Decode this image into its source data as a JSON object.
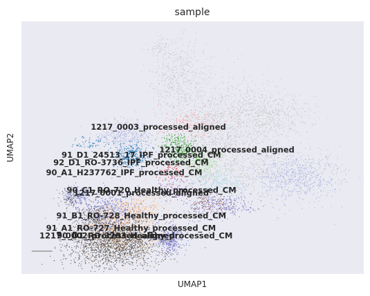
{
  "chart_data": {
    "type": "scatter",
    "title": "sample",
    "xlabel": "UMAP1",
    "ylabel": "UMAP2",
    "x_ticks": [],
    "y_ticks": [],
    "grid": false,
    "background_color": "#eaeaf2",
    "cluster_labels": [
      {
        "text": "1217_0003_processed_aligned",
        "x": 0.4,
        "y": 0.58
      },
      {
        "text": "91_D1_24513_17_IPF_processed_CM",
        "x": 0.35,
        "y": 0.47
      },
      {
        "text": "1217_0004_processed_aligned",
        "x": 0.6,
        "y": 0.49
      },
      {
        "text": "92_D1_RO-3736_IPF_processed_CM",
        "x": 0.32,
        "y": 0.44
      },
      {
        "text": "90_A1_H237762_IPF_processed_CM",
        "x": 0.3,
        "y": 0.4
      },
      {
        "text": "90_C1_RO-720_Healthy_processed_CM",
        "x": 0.38,
        "y": 0.33
      },
      {
        "text": "1217_0001_processed_aligned",
        "x": 0.35,
        "y": 0.32
      },
      {
        "text": "91_B1_RO-728_Healthy_processed_CM",
        "x": 0.35,
        "y": 0.23
      },
      {
        "text": "91_A1_RO-727_Healthy_processed_CM",
        "x": 0.32,
        "y": 0.18
      },
      {
        "text": "1217_0002_processed_aligned",
        "x": 0.25,
        "y": 0.15
      },
      {
        "text": "90_D1_RO-3203_Healthy_processed_CM",
        "x": 0.36,
        "y": 0.15
      }
    ],
    "point_groups": [
      {
        "color": "#c7c7c7",
        "regions": [
          [
            0.58,
            0.58,
            0.16,
            0.2,
            1400
          ],
          [
            0.46,
            0.78,
            0.08,
            0.14,
            500
          ],
          [
            0.72,
            0.63,
            0.12,
            0.1,
            500
          ],
          [
            0.62,
            0.4,
            0.2,
            0.09,
            500
          ],
          [
            0.4,
            0.9,
            0.03,
            0.04,
            60
          ]
        ]
      },
      {
        "color": "#aeb7df",
        "regions": [
          [
            0.8,
            0.39,
            0.13,
            0.1,
            800
          ],
          [
            0.3,
            0.55,
            0.08,
            0.06,
            400
          ]
        ]
      },
      {
        "color": "#9edae5",
        "regions": [
          [
            0.58,
            0.36,
            0.08,
            0.05,
            200
          ]
        ]
      },
      {
        "color": "#1f77b4",
        "regions": [
          [
            0.32,
            0.47,
            0.05,
            0.05,
            350
          ],
          [
            0.2,
            0.52,
            0.05,
            0.03,
            60
          ]
        ]
      },
      {
        "color": "#2ca02c",
        "regions": [
          [
            0.46,
            0.5,
            0.05,
            0.05,
            300
          ]
        ]
      },
      {
        "color": "#98df8a",
        "regions": [
          [
            0.52,
            0.44,
            0.07,
            0.05,
            250
          ]
        ]
      },
      {
        "color": "#ff9896",
        "regions": [
          [
            0.5,
            0.6,
            0.1,
            0.06,
            150
          ]
        ]
      },
      {
        "color": "#7b7bc8",
        "regions": [
          [
            0.26,
            0.24,
            0.09,
            0.09,
            600
          ],
          [
            0.43,
            0.14,
            0.04,
            0.06,
            400
          ],
          [
            0.58,
            0.27,
            0.1,
            0.05,
            300
          ],
          [
            0.16,
            0.31,
            0.05,
            0.04,
            200
          ]
        ]
      },
      {
        "color": "#ffbb78",
        "regions": [
          [
            0.28,
            0.16,
            0.1,
            0.1,
            700
          ],
          [
            0.34,
            0.26,
            0.08,
            0.05,
            250
          ]
        ]
      },
      {
        "color": "#5a5a5a",
        "regions": [
          [
            0.27,
            0.12,
            0.14,
            0.1,
            1600
          ],
          [
            0.22,
            0.22,
            0.06,
            0.05,
            250
          ],
          [
            0.14,
            0.3,
            0.03,
            0.03,
            60
          ]
        ]
      },
      {
        "color": "#8c564b",
        "regions": [
          [
            0.55,
            0.28,
            0.06,
            0.04,
            120
          ]
        ]
      },
      {
        "color": "#d62728",
        "regions": [
          [
            0.44,
            0.4,
            0.05,
            0.05,
            60
          ]
        ]
      },
      {
        "color": "#9467bd",
        "regions": [
          [
            0.45,
            0.34,
            0.06,
            0.05,
            120
          ]
        ]
      }
    ],
    "outlier_streak": {
      "color": "#9a9a9a",
      "from": [
        0.03,
        0.09
      ],
      "to": [
        0.09,
        0.09
      ]
    }
  }
}
